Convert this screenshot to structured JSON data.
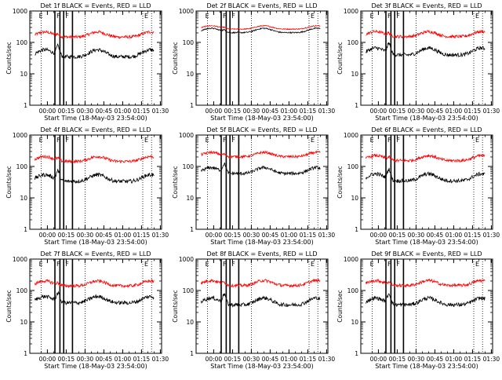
{
  "shared": {
    "xlabel": "Start Time (18-May-03 23:54:00)",
    "ylabel": "Counts/sec",
    "x_tick_labels": [
      "00:00",
      "00:15",
      "00:30",
      "00:45",
      "01:00",
      "01:15",
      "01:30"
    ],
    "y_tick_labels": [
      "1",
      "10",
      "100",
      "1000"
    ],
    "region_labels": [
      "E",
      "F",
      "F",
      "E"
    ],
    "series_names": [
      "Events",
      "LLD"
    ]
  },
  "colors": {
    "events": "#000000",
    "lld": "#ff0000",
    "axes": "#000000"
  },
  "chart_data": [
    {
      "type": "line",
      "title": "Det 1f BLACK = Events, RED = LLD",
      "x_unit": "minutes since 23:54:00",
      "xlim": [
        -8,
        97
      ],
      "ylim": [
        1,
        1000
      ],
      "y_scale": "log",
      "grid": false,
      "lld_base": 170,
      "lld_amp": 0.72,
      "events_base": 42,
      "events_amp": 1.0,
      "events_flare": 1.35,
      "lld_flare": 0.25,
      "noise": 0.06
    },
    {
      "type": "line",
      "title": "Det 2f BLACK = Events, RED = LLD",
      "x_unit": "minutes since 23:54:00",
      "xlim": [
        -8,
        97
      ],
      "ylim": [
        1,
        1000
      ],
      "y_scale": "log",
      "grid": false,
      "lld_base": 290,
      "lld_amp": 0.48,
      "events_base": 230,
      "events_amp": 0.62,
      "events_flare": 0.25,
      "lld_flare": 0.15,
      "noise": 0.02
    },
    {
      "type": "line",
      "title": "Det 3f BLACK = Events, RED = LLD",
      "x_unit": "minutes since 23:54:00",
      "xlim": [
        -8,
        97
      ],
      "ylim": [
        1,
        1000
      ],
      "y_scale": "log",
      "grid": false,
      "lld_base": 175,
      "lld_amp": 0.72,
      "events_base": 48,
      "events_amp": 1.0,
      "events_flare": 1.45,
      "lld_flare": 0.35,
      "noise": 0.06
    },
    {
      "type": "line",
      "title": "Det 4f BLACK = Events, RED = LLD",
      "x_unit": "minutes since 23:54:00",
      "xlim": [
        -8,
        97
      ],
      "ylim": [
        1,
        1000
      ],
      "y_scale": "log",
      "grid": false,
      "lld_base": 165,
      "lld_amp": 0.7,
      "events_base": 40,
      "events_amp": 0.95,
      "events_flare": 1.3,
      "lld_flare": 0.3,
      "noise": 0.06
    },
    {
      "type": "line",
      "title": "Det 5f BLACK = Events, RED = LLD",
      "x_unit": "minutes since 23:54:00",
      "xlim": [
        -8,
        97
      ],
      "ylim": [
        1,
        1000
      ],
      "y_scale": "log",
      "grid": false,
      "lld_base": 230,
      "lld_amp": 0.62,
      "events_base": 70,
      "events_amp": 0.85,
      "events_flare": 1.2,
      "lld_flare": 0.2,
      "noise": 0.05
    },
    {
      "type": "line",
      "title": "Det 6f BLACK = Events, RED = LLD",
      "x_unit": "minutes since 23:54:00",
      "xlim": [
        -8,
        97
      ],
      "ylim": [
        1,
        1000
      ],
      "y_scale": "log",
      "grid": false,
      "lld_base": 175,
      "lld_amp": 0.72,
      "events_base": 42,
      "events_amp": 1.0,
      "events_flare": 1.45,
      "lld_flare": 0.35,
      "noise": 0.06
    },
    {
      "type": "line",
      "title": "Det 7f BLACK = Events, RED = LLD",
      "x_unit": "minutes since 23:54:00",
      "xlim": [
        -8,
        97
      ],
      "ylim": [
        1,
        1000
      ],
      "y_scale": "log",
      "grid": false,
      "lld_base": 160,
      "lld_amp": 0.7,
      "events_base": 48,
      "events_amp": 0.9,
      "events_flare": 1.2,
      "lld_flare": 0.25,
      "noise": 0.06
    },
    {
      "type": "line",
      "title": "Det 8f BLACK = Events, RED = LLD",
      "x_unit": "minutes since 23:54:00",
      "xlim": [
        -8,
        97
      ],
      "ylim": [
        1,
        1000
      ],
      "y_scale": "log",
      "grid": false,
      "lld_base": 165,
      "lld_amp": 0.72,
      "events_base": 42,
      "events_amp": 1.0,
      "events_flare": 1.35,
      "lld_flare": 0.3,
      "noise": 0.06
    },
    {
      "type": "line",
      "title": "Det 9f BLACK = Events, RED = LLD",
      "x_unit": "minutes since 23:54:00",
      "xlim": [
        -8,
        97
      ],
      "ylim": [
        1,
        1000
      ],
      "y_scale": "log",
      "grid": false,
      "lld_base": 165,
      "lld_amp": 0.7,
      "events_base": 42,
      "events_amp": 0.95,
      "events_flare": 1.4,
      "lld_flare": 0.3,
      "noise": 0.06
    }
  ]
}
